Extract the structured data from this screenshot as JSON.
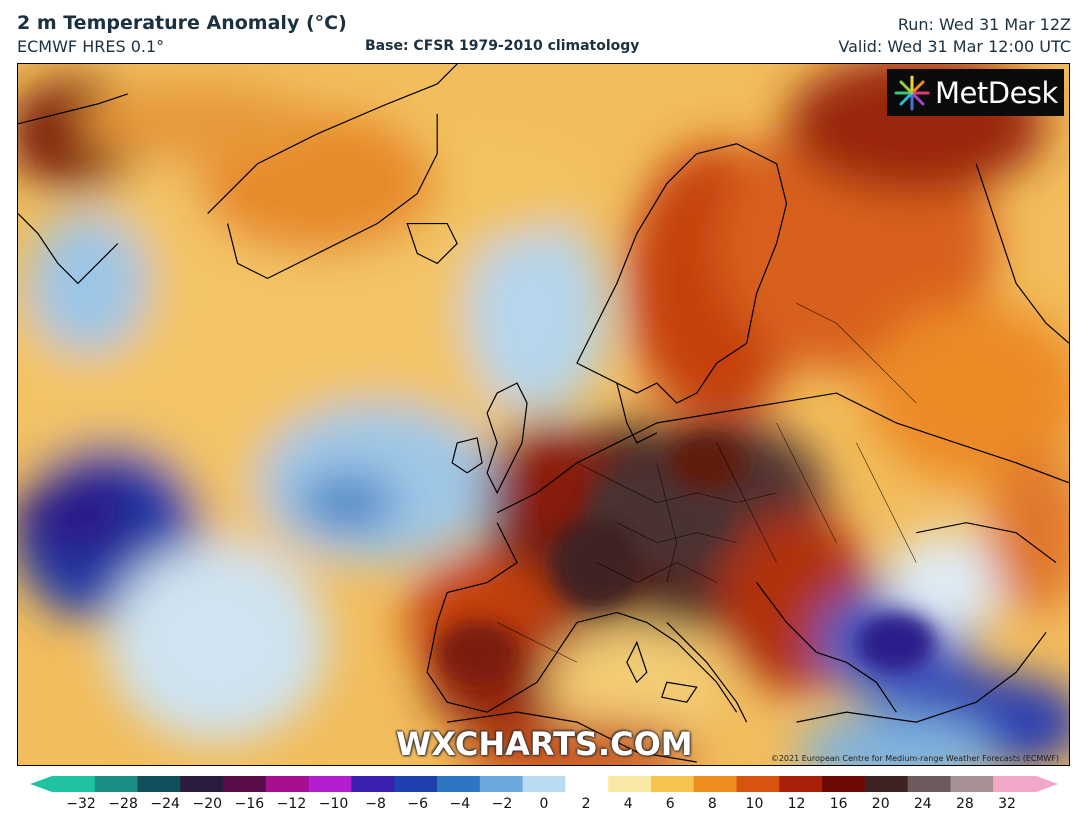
{
  "header": {
    "title": "2 m Temperature Anomaly (°C)",
    "model": "ECMWF HRES 0.1°",
    "base": "Base: CFSR 1979-2010 climatology",
    "run": "Run: Wed 31 Mar 12Z",
    "valid": "Valid: Wed 31 Mar 12:00 UTC"
  },
  "logo": {
    "text": "MetDesk",
    "icon": "metdesk-starburst-icon"
  },
  "watermark": "WXCHARTS.COM",
  "copyright": "©2021 European Centre for Medium-range Weather Forecasts (ECMWF)",
  "legend": {
    "ticks": [
      "−32",
      "−28",
      "−24",
      "−20",
      "−16",
      "−12",
      "−10",
      "−8",
      "−6",
      "−4",
      "−2",
      "0",
      "2",
      "4",
      "6",
      "8",
      "10",
      "12",
      "16",
      "20",
      "24",
      "28",
      "32"
    ],
    "colors": [
      "#1fc3a0",
      "#1b8f86",
      "#124f5c",
      "#2a1c3e",
      "#5a0d4a",
      "#a6108f",
      "#b11fd1",
      "#3a1fb0",
      "#1e3fae",
      "#2f76c2",
      "#6aa8dd",
      "#b9dbef",
      "#ffffff",
      "#f8e9a6",
      "#f5c44c",
      "#ec8d1c",
      "#d9540f",
      "#a8200a",
      "#6d0a06",
      "#3c2322",
      "#6d5b5b",
      "#a69292",
      "#f2a8c8"
    ]
  }
}
